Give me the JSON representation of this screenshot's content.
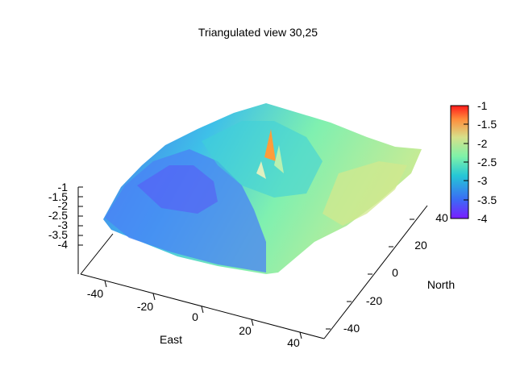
{
  "chart_data": {
    "type": "surface",
    "title": "Triangulated view 30,25",
    "xlabel": "East",
    "ylabel": "North",
    "zlabel": "",
    "x_ticks": [
      "-40",
      "-20",
      "0",
      "20",
      "40"
    ],
    "y_ticks": [
      "-40",
      "-20",
      "0",
      "20",
      "40"
    ],
    "z_ticks": [
      "-1",
      "-1.5",
      "-2",
      "-2.5",
      "-3",
      "-3.5",
      "-4"
    ],
    "colorbar": {
      "ticks": [
        "-1",
        "-1.5",
        "-2",
        "-2.5",
        "-3",
        "-3.5",
        "-4"
      ],
      "range": [
        -4,
        -1
      ],
      "palette": [
        "#7a1cff",
        "#3a6cf5",
        "#25c7d6",
        "#7ef2a8",
        "#d7e08a",
        "#ff8c3b",
        "#ff1a1a"
      ]
    },
    "xlim": [
      -50,
      50
    ],
    "ylim": [
      -50,
      50
    ],
    "zlim": [
      -4,
      -1
    ],
    "view": "30,25",
    "grid": false,
    "legend": "none"
  }
}
